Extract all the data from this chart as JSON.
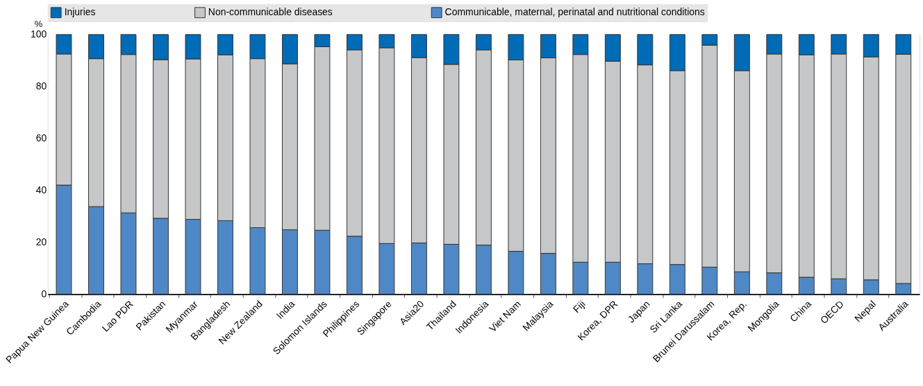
{
  "chart_data": {
    "type": "bar",
    "stacked": true,
    "ylabel": "%",
    "ylim": [
      0,
      100
    ],
    "yticks": [
      0,
      20,
      40,
      60,
      80,
      100
    ],
    "grid": true,
    "legend": "top",
    "categories": [
      "Papua New Guinea",
      "Cambodia",
      "Lao PDR",
      "Pakistan",
      "Myanmar",
      "Bangladesh",
      "New Zealand",
      "India",
      "Solomon Islands",
      "Philippines",
      "Singapore",
      "Asia20",
      "Thailand",
      "Indonesia",
      "Viet Nam",
      "Malaysia",
      "Fiji",
      "Korea, DPR",
      "Japan",
      "Sri Lanka",
      "Brunei Darussalam",
      "Korea, Rep.",
      "Mongolia",
      "China",
      "OECD",
      "Nepal",
      "Australia"
    ],
    "series": [
      {
        "name": "Communicable, maternal, perinatal and nutritional conditions",
        "color": "#4f88c6",
        "values": [
          42,
          33.7,
          31.3,
          29.2,
          28.8,
          28.3,
          25.6,
          24.8,
          24.6,
          22.3,
          19.5,
          19.7,
          19.2,
          18.9,
          16.5,
          15.7,
          12.3,
          12.3,
          11.7,
          11.4,
          10.4,
          8.6,
          8.2,
          6.5,
          5.9,
          5.5,
          4.1
        ]
      },
      {
        "name": "Non-communicable diseases",
        "color": "#c6c7c9",
        "values": [
          50.5,
          57,
          61,
          61.1,
          61.8,
          63.9,
          65.1,
          63.9,
          70.7,
          71.8,
          75.4,
          71.4,
          69.3,
          75.2,
          73.7,
          75.3,
          80,
          77.4,
          76.6,
          74.7,
          85.5,
          77.5,
          84.3,
          85.7,
          86.6,
          85.9,
          88.3
        ]
      },
      {
        "name": "Injuries",
        "color": "#006bb6",
        "values": [
          7.5,
          9.3,
          7.7,
          9.7,
          9.4,
          7.8,
          9.3,
          11.3,
          4.7,
          5.9,
          5.1,
          8.9,
          11.5,
          5.9,
          9.8,
          9,
          7.7,
          10.3,
          11.7,
          13.9,
          4.1,
          13.9,
          7.5,
          7.8,
          7.5,
          8.6,
          7.6
        ]
      }
    ]
  }
}
